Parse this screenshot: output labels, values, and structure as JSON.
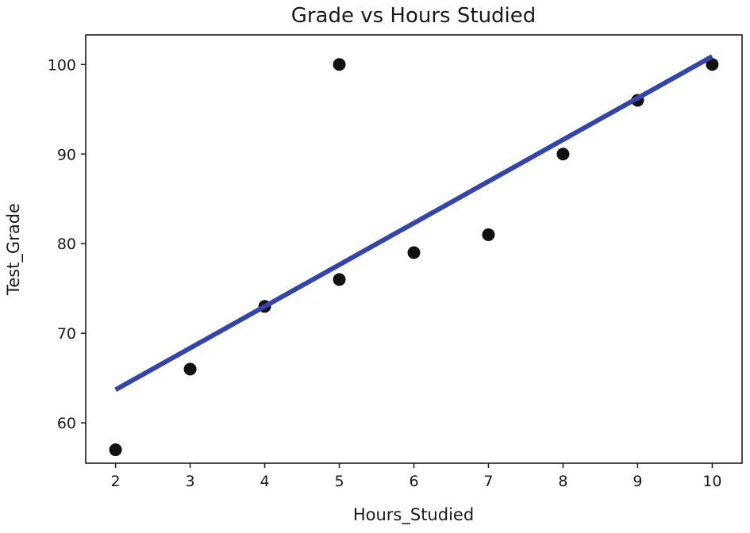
{
  "chart_data": {
    "type": "scatter",
    "title": "Grade vs Hours Studied",
    "xlabel": "Hours_Studied",
    "ylabel": "Test_Grade",
    "xlim": [
      1.6,
      10.4
    ],
    "ylim": [
      55.5,
      103.3
    ],
    "xticks": [
      2,
      3,
      4,
      5,
      6,
      7,
      8,
      9,
      10
    ],
    "yticks": [
      60,
      70,
      80,
      90,
      100
    ],
    "grid": false,
    "series": [
      {
        "type": "scatter",
        "color": "#111111",
        "points": [
          {
            "x": 2,
            "y": 57
          },
          {
            "x": 3,
            "y": 66
          },
          {
            "x": 4,
            "y": 73
          },
          {
            "x": 5,
            "y": 76
          },
          {
            "x": 5,
            "y": 100
          },
          {
            "x": 6,
            "y": 79
          },
          {
            "x": 7,
            "y": 81
          },
          {
            "x": 8,
            "y": 90
          },
          {
            "x": 9,
            "y": 96
          },
          {
            "x": 10,
            "y": 100
          }
        ]
      },
      {
        "type": "line",
        "color": "#3344aa",
        "points": [
          {
            "x": 2,
            "y": 63.7
          },
          {
            "x": 10,
            "y": 100.9
          }
        ]
      }
    ]
  }
}
